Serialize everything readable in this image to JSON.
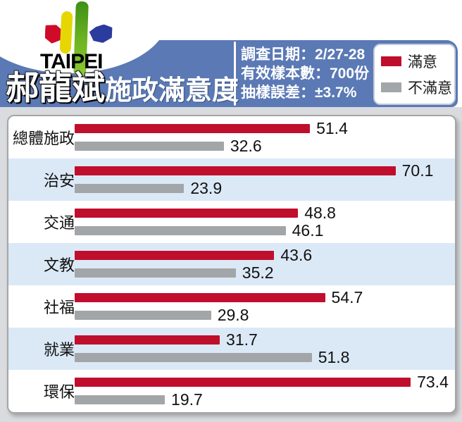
{
  "header": {
    "logo_text": "TAIPEI",
    "title_main": "郝龍斌",
    "title_sub": "施政滿意度"
  },
  "survey": {
    "date": "調查日期：2/27-28",
    "sample": "有效樣本數：700份",
    "error": "抽樣誤差：±3.7%"
  },
  "legend": {
    "satisfied": "滿意",
    "dissatisfied": "不滿意"
  },
  "colors": {
    "satisfied_red": "#c00e2d",
    "dissatisfied_gray": "#a3a6a8",
    "banner_blue": "#5a79b5",
    "row_alt_blue": "#dbe9f6"
  },
  "chart_data": {
    "type": "bar",
    "orientation": "horizontal",
    "title": "郝龍斌施政滿意度",
    "categories": [
      "總體施政",
      "治安",
      "交通",
      "文教",
      "社福",
      "就業",
      "環保"
    ],
    "series": [
      {
        "name": "滿意",
        "color": "#c00e2d",
        "values": [
          51.4,
          70.1,
          48.8,
          43.6,
          54.7,
          31.7,
          73.4
        ]
      },
      {
        "name": "不滿意",
        "color": "#a3a6a8",
        "values": [
          32.6,
          23.9,
          46.1,
          35.2,
          29.8,
          51.8,
          19.7
        ]
      }
    ],
    "value_labels_shown": true,
    "xlim": [
      0,
      80
    ],
    "grid": false,
    "legend_position": "top-right"
  }
}
